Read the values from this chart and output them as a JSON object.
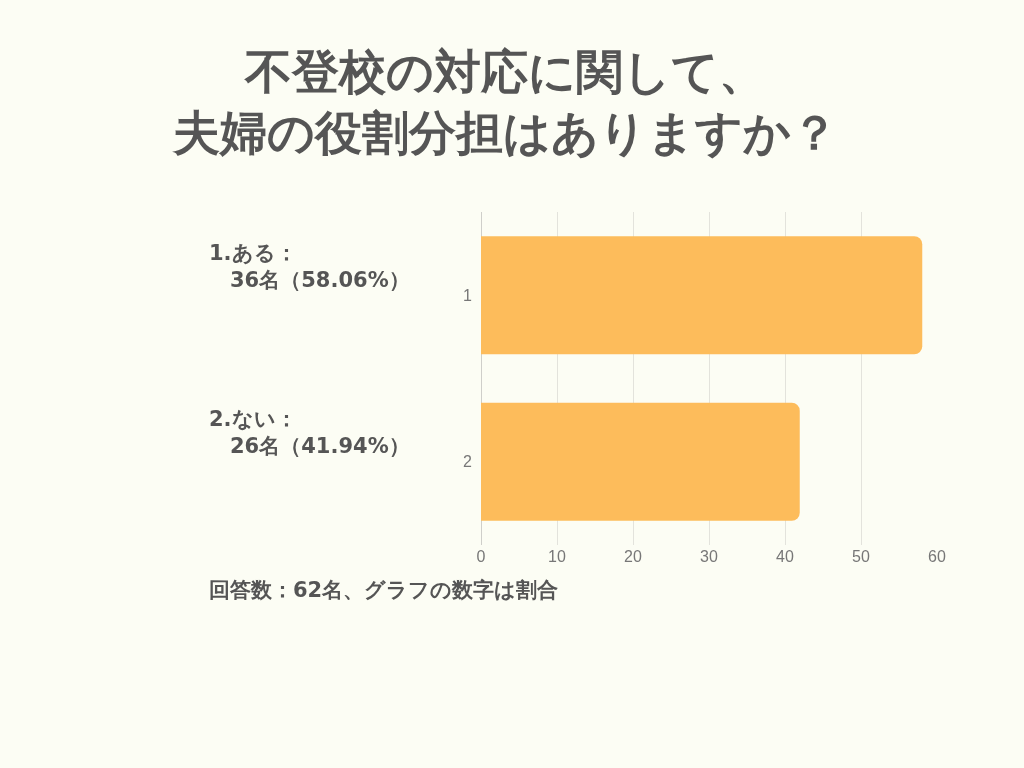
{
  "chart_data": {
    "type": "bar",
    "orientation": "horizontal",
    "title": "不登校の対応に関して、夫婦の役割分担はありますか？",
    "categories": [
      "1",
      "2"
    ],
    "values": [
      58.06,
      41.94
    ],
    "color": "#fdbc5b",
    "xlim": [
      0,
      60
    ],
    "xticks": [
      0,
      10,
      20,
      30,
      40,
      50,
      60
    ],
    "grid": "x",
    "annotations": [
      "1.ある：\n　36名（58.06%）",
      "2.ない：\n　26名（41.94%）",
      "回答数：62名、グラフの数字は割合"
    ]
  }
}
